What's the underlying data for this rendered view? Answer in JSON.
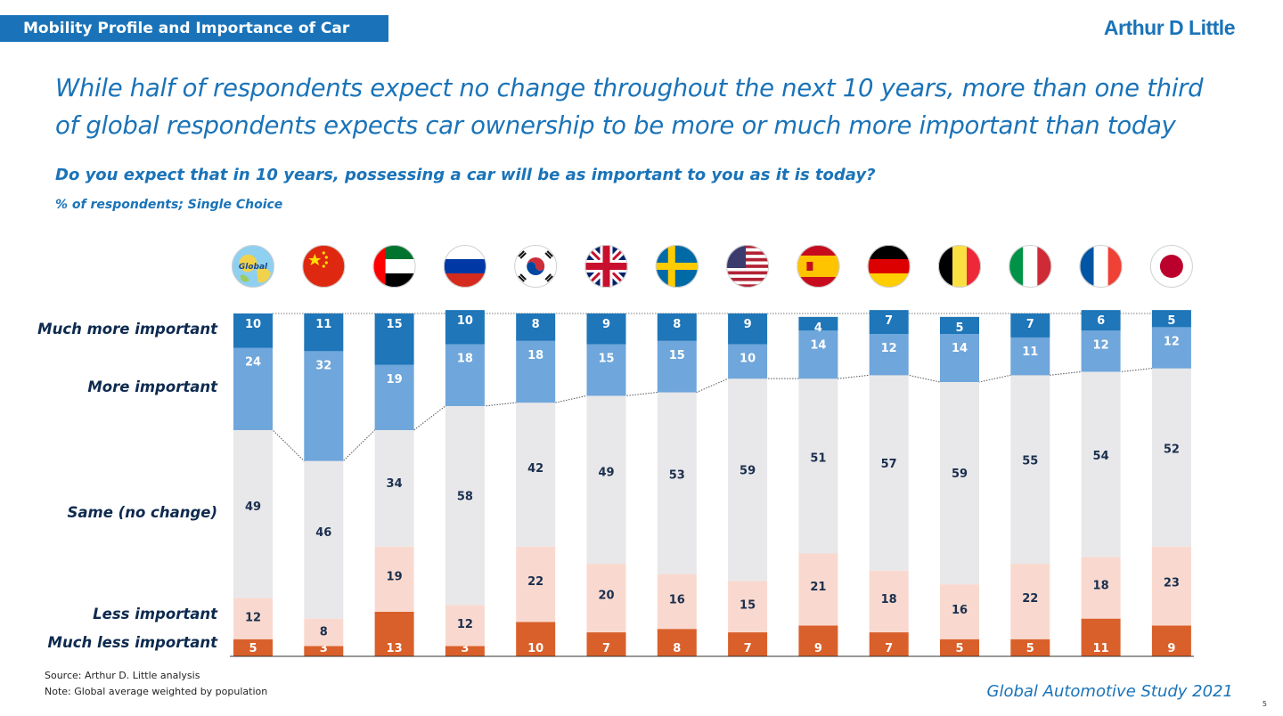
{
  "header": {
    "section_tag": "Mobility Profile and Importance of Car",
    "brand": "Arthur D Little"
  },
  "headline": "While half of respondents expect no change throughout the next 10 years, more than one third of global respondents expects car ownership to be more or much more important than today",
  "question": "Do you expect that in 10 years, possessing a car will be as important to you as it is today?",
  "unit_note": "% of respondents; Single Choice",
  "row_labels": {
    "much_more": "Much more important",
    "more": "More important",
    "same": "Same (no change)",
    "less": "Less important",
    "much_less": "Much less important"
  },
  "footer": {
    "source": "Source: Arthur D. Little analysis",
    "note": "Note: Global average weighted by population",
    "study": "Global Automotive Study 2021",
    "page_number": "5"
  },
  "chart_data": {
    "type": "bar",
    "stacked": true,
    "normalized_to": 100,
    "categories": [
      "Global",
      "China",
      "UAE",
      "Russia",
      "South Korea",
      "United Kingdom",
      "Sweden",
      "USA",
      "Spain",
      "Germany",
      "Belgium",
      "Italy",
      "France",
      "Japan"
    ],
    "globe_label": "Global",
    "series": [
      {
        "name": "Much less important",
        "color": "#d9602a",
        "values": [
          5,
          3,
          13,
          3,
          10,
          7,
          8,
          7,
          9,
          7,
          5,
          5,
          11,
          9
        ]
      },
      {
        "name": "Less important",
        "color": "#f9d9cf",
        "values": [
          12,
          8,
          19,
          12,
          22,
          20,
          16,
          15,
          21,
          18,
          16,
          22,
          18,
          23
        ]
      },
      {
        "name": "Same (no change)",
        "color": "#e8e8ea",
        "values": [
          49,
          46,
          34,
          58,
          42,
          49,
          53,
          59,
          51,
          57,
          59,
          55,
          54,
          52
        ]
      },
      {
        "name": "More important",
        "color": "#6fa6db",
        "values": [
          24,
          32,
          19,
          18,
          18,
          15,
          15,
          10,
          14,
          12,
          14,
          11,
          12,
          12
        ]
      },
      {
        "name": "Much more important",
        "color": "#1f76b9",
        "values": [
          10,
          11,
          15,
          10,
          8,
          9,
          8,
          9,
          4,
          7,
          5,
          7,
          6,
          5
        ]
      }
    ]
  }
}
